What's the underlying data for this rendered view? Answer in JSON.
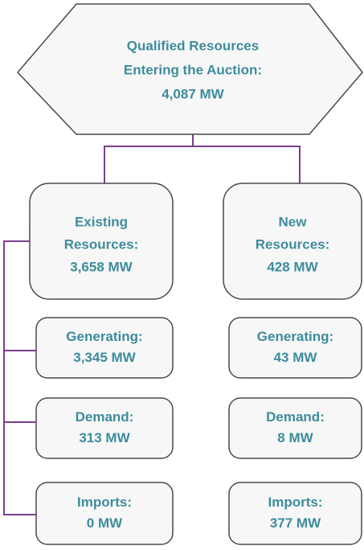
{
  "root": {
    "lines": [
      "Qualified Resources",
      "Entering the Auction:",
      "4,087 MW"
    ]
  },
  "columns": [
    {
      "header": {
        "lines": [
          "Existing",
          "Resources:",
          "3,658 MW"
        ]
      },
      "items": [
        {
          "lines": [
            "Generating:",
            "3,345 MW"
          ]
        },
        {
          "lines": [
            "Demand:",
            "313 MW"
          ]
        },
        {
          "lines": [
            "Imports:",
            "0 MW"
          ]
        }
      ]
    },
    {
      "header": {
        "lines": [
          "New",
          "Resources:",
          "428 MW"
        ]
      },
      "items": [
        {
          "lines": [
            "Generating:",
            "43 MW"
          ]
        },
        {
          "lines": [
            "Demand:",
            "8 MW"
          ]
        },
        {
          "lines": [
            "Imports:",
            "377 MW"
          ]
        }
      ]
    }
  ]
}
